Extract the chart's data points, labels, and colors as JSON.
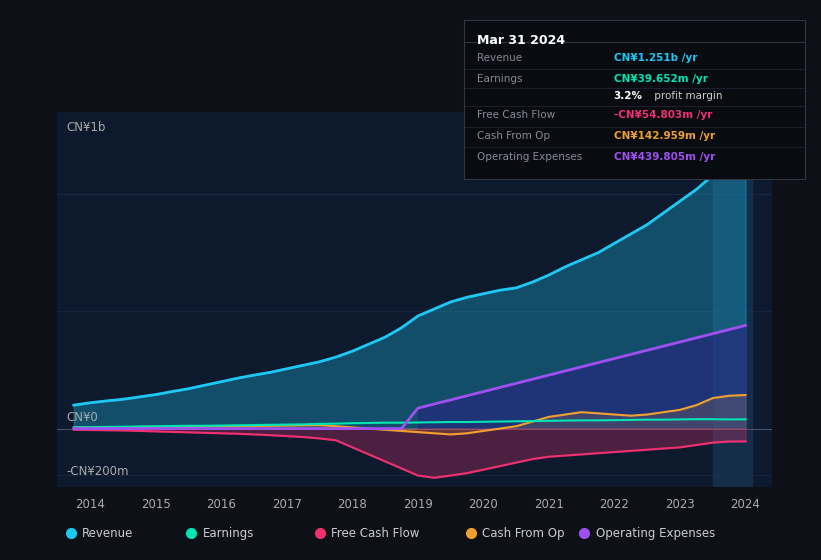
{
  "bg_color": "#0d1117",
  "chart_bg": "#0d1a2e",
  "y_label_top": "CN¥1b",
  "y_label_zero": "CN¥0",
  "y_label_bottom": "-CN¥200m",
  "x_ticks": [
    "2014",
    "2015",
    "2016",
    "2017",
    "2018",
    "2019",
    "2020",
    "2021",
    "2022",
    "2023",
    "2024"
  ],
  "legend": [
    {
      "label": "Revenue",
      "color": "#1ec8f5"
    },
    {
      "label": "Earnings",
      "color": "#00e5b3"
    },
    {
      "label": "Free Cash Flow",
      "color": "#f03070"
    },
    {
      "label": "Cash From Op",
      "color": "#f0a030"
    },
    {
      "label": "Operating Expenses",
      "color": "#a050f0"
    }
  ],
  "info_box": {
    "date": "Mar 31 2024",
    "rows": [
      {
        "label": "Revenue",
        "value": "CN¥1.251b /yr",
        "color": "#1ec8f5"
      },
      {
        "label": "Earnings",
        "value": "CN¥39.652m /yr",
        "color": "#00e5b3"
      },
      {
        "label": "",
        "value": "3.2% profit margin",
        "color": "#cccccc"
      },
      {
        "label": "Free Cash Flow",
        "value": "-CN¥54.803m /yr",
        "color": "#f03070"
      },
      {
        "label": "Cash From Op",
        "value": "CN¥142.959m /yr",
        "color": "#f0a030"
      },
      {
        "label": "Operating Expenses",
        "value": "CN¥439.805m /yr",
        "color": "#a050f0"
      }
    ]
  },
  "rev_color": "#1ec8f5",
  "earn_color": "#00e5b3",
  "fcf_color": "#f03070",
  "cfo_color": "#f0a030",
  "ope_color": "#a050f0"
}
